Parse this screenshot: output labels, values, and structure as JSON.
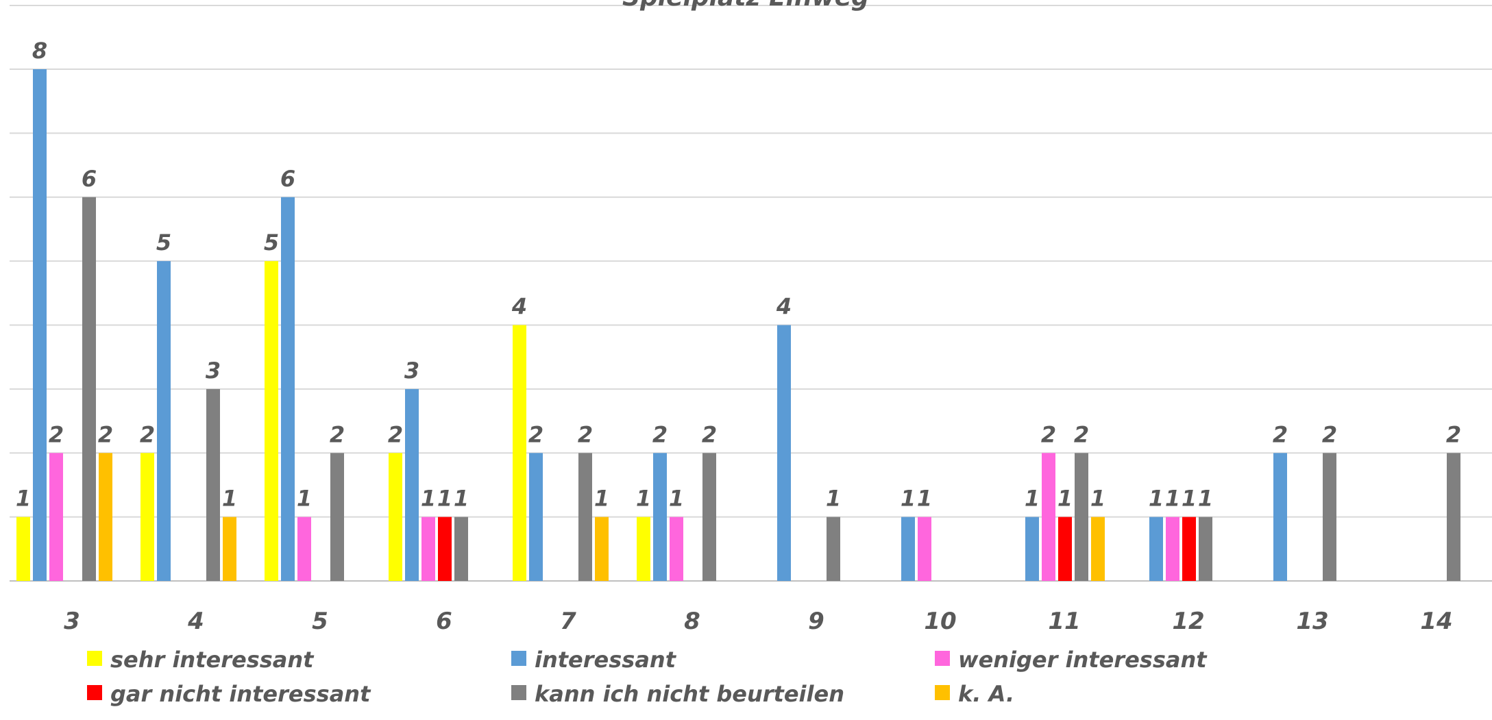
{
  "chart_data": {
    "type": "bar",
    "title": "Spielplatz Einweg",
    "xlabel": "",
    "ylabel": "",
    "ylim": [
      0,
      8
    ],
    "grid": true,
    "legend_position": "bottom",
    "categories": [
      "3",
      "4",
      "5",
      "6",
      "7",
      "8",
      "9",
      "10",
      "11",
      "12",
      "13",
      "14"
    ],
    "series": [
      {
        "name": "sehr interessant",
        "color": "#FFFF00",
        "values": [
          1,
          2,
          5,
          2,
          4,
          1,
          null,
          null,
          null,
          null,
          null,
          null
        ]
      },
      {
        "name": "interessant",
        "color": "#5B9BD5",
        "values": [
          8,
          5,
          6,
          3,
          2,
          2,
          4,
          1,
          1,
          1,
          2,
          null
        ]
      },
      {
        "name": "weniger interessant",
        "color": "#FF66DD",
        "values": [
          2,
          null,
          1,
          1,
          null,
          1,
          null,
          1,
          2,
          1,
          null,
          null
        ]
      },
      {
        "name": "gar nicht interessant",
        "color": "#FF0000",
        "values": [
          null,
          null,
          null,
          1,
          null,
          null,
          null,
          null,
          1,
          1,
          null,
          null
        ]
      },
      {
        "name": "kann ich nicht beurteilen",
        "color": "#808080",
        "values": [
          6,
          3,
          2,
          1,
          2,
          2,
          1,
          null,
          2,
          1,
          2,
          2
        ]
      },
      {
        "name": "k. A.",
        "color": "#FFC000",
        "values": [
          2,
          1,
          null,
          null,
          1,
          null,
          null,
          null,
          1,
          null,
          null,
          null
        ]
      }
    ]
  }
}
